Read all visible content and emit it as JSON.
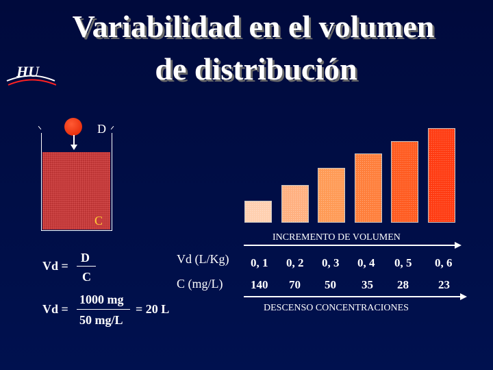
{
  "title": {
    "line1": "Variabilidad en el volumen",
    "line2": "de distribución"
  },
  "logo": {
    "text": "HU"
  },
  "colors": {
    "background": "#000a3c",
    "fluid": "#bb3333",
    "drop": "#ff3300",
    "label_c": "#ffcc33"
  },
  "beaker": {
    "dose_label": "D",
    "conc_label": "C"
  },
  "bars": {
    "increment_label": "INCREMENTO DE VOLUMEN",
    "decrease_label": "DESCENSO CONCENTRACIONES",
    "items": [
      {
        "vd": "0, 1",
        "c": "140",
        "color": "#ffd0b0",
        "level": 0.23
      },
      {
        "vd": "0, 2",
        "c": "70",
        "color": "#ffb080",
        "level": 0.4
      },
      {
        "vd": "0, 3",
        "c": "50",
        "color": "#ff9a55",
        "level": 0.58
      },
      {
        "vd": "0, 4",
        "c": "35",
        "color": "#ff7e3a",
        "level": 0.73
      },
      {
        "vd": "0, 5",
        "c": "28",
        "color": "#ff5a1e",
        "level": 0.86
      },
      {
        "vd": "0, 6",
        "c": "23",
        "color": "#ff3a10",
        "level": 1.0
      }
    ]
  },
  "rows": {
    "vd_label": "Vd (L/Kg)",
    "c_label": "C (mg/L)"
  },
  "formula1": {
    "lhs": "Vd =",
    "num": "D",
    "den": "C"
  },
  "formula2": {
    "lhs": "Vd =",
    "num": "1000 mg",
    "den": "50 mg/L",
    "result": "= 20 L"
  }
}
